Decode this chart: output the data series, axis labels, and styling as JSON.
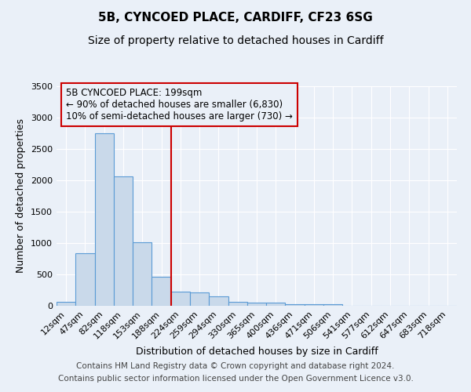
{
  "title_line1": "5B, CYNCOED PLACE, CARDIFF, CF23 6SG",
  "title_line2": "Size of property relative to detached houses in Cardiff",
  "xlabel": "Distribution of detached houses by size in Cardiff",
  "ylabel": "Number of detached properties",
  "categories": [
    "12sqm",
    "47sqm",
    "82sqm",
    "118sqm",
    "153sqm",
    "188sqm",
    "224sqm",
    "259sqm",
    "294sqm",
    "330sqm",
    "365sqm",
    "400sqm",
    "436sqm",
    "471sqm",
    "506sqm",
    "541sqm",
    "577sqm",
    "612sqm",
    "647sqm",
    "683sqm",
    "718sqm"
  ],
  "values": [
    60,
    840,
    2750,
    2060,
    1010,
    460,
    220,
    215,
    145,
    65,
    55,
    45,
    30,
    25,
    20,
    0,
    0,
    0,
    0,
    0,
    0
  ],
  "bar_color": "#c9d9ea",
  "bar_edge_color": "#5b9bd5",
  "ylim": [
    0,
    3500
  ],
  "yticks": [
    0,
    500,
    1000,
    1500,
    2000,
    2500,
    3000,
    3500
  ],
  "vline_color": "#cc0000",
  "vline_x": 5.5,
  "annotation_text": "5B CYNCOED PLACE: 199sqm\n← 90% of detached houses are smaller (6,830)\n10% of semi-detached houses are larger (730) →",
  "footer_line1": "Contains HM Land Registry data © Crown copyright and database right 2024.",
  "footer_line2": "Contains public sector information licensed under the Open Government Licence v3.0.",
  "background_color": "#eaf0f8",
  "grid_color": "#ffffff",
  "title_fontsize": 11,
  "subtitle_fontsize": 10,
  "axis_label_fontsize": 9,
  "tick_fontsize": 8,
  "annotation_fontsize": 8.5,
  "footer_fontsize": 7.5
}
